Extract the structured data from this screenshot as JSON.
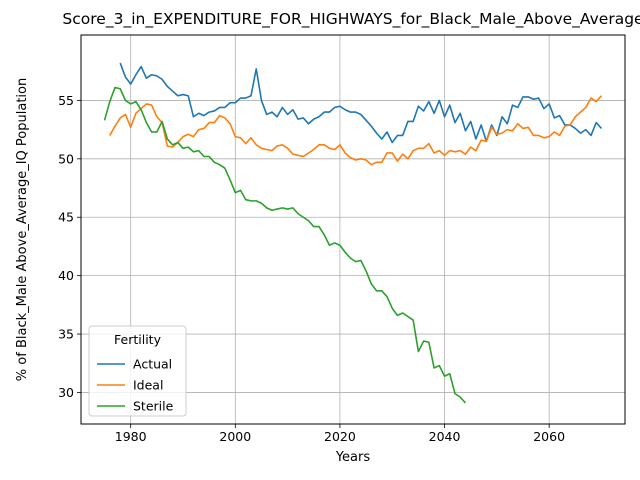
{
  "chart_data": {
    "type": "line",
    "title": "Score_3_in_EXPENDITURE_FOR_HIGHWAYS_for_Black_Male_Above_Average",
    "xlabel": "Years",
    "ylabel": "% of Black_Male Above_Average_IQ Population",
    "xlim": [
      1970.5,
      2074.5
    ],
    "ylim": [
      27.3,
      60.6
    ],
    "xticks": [
      1980,
      2000,
      2020,
      2040,
      2060
    ],
    "yticks": [
      30,
      35,
      40,
      45,
      50,
      55
    ],
    "grid": true,
    "legend": {
      "title": "Fertility",
      "placement": "lower-left"
    },
    "series": [
      {
        "name": "Actual",
        "color": "#1f77b4",
        "x": [
          1978,
          1979,
          1980,
          1981,
          1982,
          1983,
          1984,
          1985,
          1986,
          1987,
          1988,
          1989,
          1990,
          1991,
          1992,
          1993,
          1994,
          1995,
          1996,
          1997,
          1998,
          1999,
          2000,
          2001,
          2002,
          2003,
          2004,
          2005,
          2006,
          2007,
          2008,
          2009,
          2010,
          2011,
          2012,
          2013,
          2014,
          2015,
          2016,
          2017,
          2018,
          2019,
          2020,
          2021,
          2022,
          2023,
          2024,
          2025,
          2026,
          2027,
          2028,
          2029,
          2030,
          2031,
          2032,
          2033,
          2034,
          2035,
          2036,
          2037,
          2038,
          2039,
          2040,
          2041,
          2042,
          2043,
          2044,
          2045,
          2046,
          2047,
          2048,
          2049,
          2050,
          2051,
          2052,
          2053,
          2054,
          2055,
          2056,
          2057,
          2058,
          2059,
          2060,
          2061,
          2062,
          2063,
          2064,
          2065,
          2066,
          2067,
          2068,
          2069,
          2070
        ],
        "y": [
          58.2,
          57.0,
          56.4,
          57.2,
          57.9,
          56.9,
          57.2,
          57.1,
          56.8,
          56.2,
          55.8,
          55.4,
          55.5,
          55.4,
          53.6,
          53.9,
          53.7,
          54.0,
          54.1,
          54.4,
          54.4,
          54.8,
          54.8,
          55.2,
          55.2,
          55.4,
          57.7,
          55.0,
          53.8,
          54.0,
          53.6,
          54.4,
          53.8,
          54.2,
          53.4,
          53.5,
          53.0,
          53.4,
          53.6,
          54.0,
          54.0,
          54.4,
          54.5,
          54.2,
          54.0,
          54.0,
          53.8,
          53.3,
          52.8,
          52.2,
          51.7,
          52.3,
          51.4,
          52.0,
          52.0,
          53.2,
          53.2,
          54.5,
          54.1,
          54.9,
          53.9,
          55.0,
          53.6,
          54.6,
          53.1,
          53.9,
          52.4,
          53.2,
          51.7,
          52.9,
          51.5,
          52.9,
          52.0,
          53.6,
          53.0,
          54.6,
          54.4,
          55.3,
          55.3,
          55.1,
          55.2,
          54.3,
          54.7,
          53.5,
          53.7,
          52.9,
          52.9,
          52.6,
          52.2,
          52.5,
          52.0,
          53.1,
          52.6
        ]
      },
      {
        "name": "Ideal",
        "color": "#ff7f0e",
        "x": [
          1976,
          1977,
          1978,
          1979,
          1980,
          1981,
          1982,
          1983,
          1984,
          1985,
          1986,
          1987,
          1988,
          1989,
          1990,
          1991,
          1992,
          1993,
          1994,
          1995,
          1996,
          1997,
          1998,
          1999,
          2000,
          2001,
          2002,
          2003,
          2004,
          2005,
          2006,
          2007,
          2008,
          2009,
          2010,
          2011,
          2012,
          2013,
          2014,
          2015,
          2016,
          2017,
          2018,
          2019,
          2020,
          2021,
          2022,
          2023,
          2024,
          2025,
          2026,
          2027,
          2028,
          2029,
          2030,
          2031,
          2032,
          2033,
          2034,
          2035,
          2036,
          2037,
          2038,
          2039,
          2040,
          2041,
          2042,
          2043,
          2044,
          2045,
          2046,
          2047,
          2048,
          2049,
          2050,
          2051,
          2052,
          2053,
          2054,
          2055,
          2056,
          2057,
          2058,
          2059,
          2060,
          2061,
          2062,
          2063,
          2064,
          2065,
          2066,
          2067,
          2068,
          2069,
          2070
        ],
        "y": [
          52.0,
          52.8,
          53.5,
          53.8,
          52.7,
          53.9,
          54.3,
          54.7,
          54.6,
          53.6,
          53.1,
          51.1,
          51.0,
          51.4,
          51.9,
          52.1,
          51.9,
          52.5,
          52.6,
          53.1,
          53.1,
          53.7,
          53.5,
          53.0,
          51.9,
          51.8,
          51.3,
          51.8,
          51.2,
          50.9,
          50.8,
          50.7,
          51.1,
          51.2,
          50.9,
          50.4,
          50.3,
          50.2,
          50.5,
          50.8,
          51.2,
          51.2,
          50.9,
          50.8,
          51.2,
          50.5,
          50.1,
          49.9,
          50.0,
          49.9,
          49.5,
          49.7,
          49.7,
          50.5,
          50.5,
          49.8,
          50.4,
          50.0,
          50.7,
          50.9,
          50.9,
          51.3,
          50.5,
          50.7,
          50.3,
          50.7,
          50.6,
          50.7,
          50.4,
          51.0,
          50.7,
          51.6,
          51.5,
          52.7,
          52.1,
          52.2,
          52.5,
          52.4,
          53.0,
          52.6,
          52.7,
          52.0,
          52.0,
          51.8,
          51.9,
          52.3,
          52.0,
          52.8,
          52.9,
          53.6,
          54.0,
          54.4,
          55.2,
          54.9,
          55.4
        ]
      },
      {
        "name": "Sterile",
        "color": "#2ca02c",
        "x": [
          1975,
          1976,
          1977,
          1978,
          1979,
          1980,
          1981,
          1982,
          1983,
          1984,
          1985,
          1986,
          1987,
          1988,
          1989,
          1990,
          1991,
          1992,
          1993,
          1994,
          1995,
          1996,
          1997,
          1998,
          1999,
          2000,
          2001,
          2002,
          2003,
          2004,
          2005,
          2006,
          2007,
          2008,
          2009,
          2010,
          2011,
          2012,
          2013,
          2014,
          2015,
          2016,
          2017,
          2018,
          2019,
          2020,
          2021,
          2022,
          2023,
          2024,
          2025,
          2026,
          2027,
          2028,
          2029,
          2030,
          2031,
          2032,
          2033,
          2034,
          2035,
          2036,
          2037,
          2038,
          2039,
          2040,
          2041,
          2042,
          2043,
          2044
        ],
        "y": [
          53.3,
          54.9,
          56.1,
          56.0,
          55.0,
          54.7,
          54.9,
          54.2,
          53.1,
          52.3,
          52.3,
          53.2,
          51.7,
          51.2,
          51.4,
          50.9,
          51.0,
          50.6,
          50.7,
          50.2,
          50.2,
          49.7,
          49.5,
          49.2,
          48.2,
          47.1,
          47.3,
          46.5,
          46.4,
          46.4,
          46.2,
          45.8,
          45.6,
          45.7,
          45.8,
          45.7,
          45.8,
          45.3,
          45.0,
          44.7,
          44.2,
          44.2,
          43.5,
          42.6,
          42.8,
          42.6,
          42.0,
          41.5,
          41.2,
          41.3,
          40.4,
          39.3,
          38.7,
          38.7,
          38.2,
          37.2,
          36.6,
          36.8,
          36.5,
          36.2,
          33.5,
          34.4,
          34.3,
          32.1,
          32.3,
          31.4,
          31.6,
          29.9,
          29.6,
          29.1
        ]
      }
    ]
  }
}
